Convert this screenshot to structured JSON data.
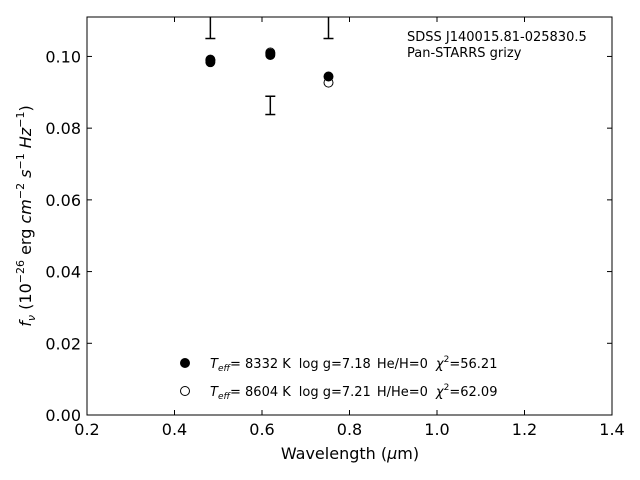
{
  "chart_data": {
    "type": "scatter",
    "title": "",
    "annotation": {
      "object": "SDSS J140015.81-025830.5",
      "survey": "Pan-STARRS grizy"
    },
    "xlabel": "Wavelength ($\\mu$m)",
    "xlabel_parts": {
      "pre": "Wavelength (",
      "mu": "μ",
      "post": "m)"
    },
    "ylabel": "$f_\\nu$ ($10^{-26}$ erg $cm^{-2}$ $s^{-1}$ $Hz^{-1}$)",
    "ylabel_parts": {
      "f": "f",
      "nu": "ν",
      "open": " (10",
      "e1": "−26",
      "erg": " erg ",
      "cm": "cm",
      "e2": "−2",
      "s": " s",
      "e3": "−1",
      "hz": " Hz",
      "e4": "−1",
      "close": ")"
    },
    "xlim": [
      0.2,
      1.4
    ],
    "ylim": [
      0.0,
      0.111
    ],
    "xticks": [
      "0.2",
      "0.4",
      "0.6",
      "0.8",
      "1.0",
      "1.2",
      "1.4"
    ],
    "xtick_values": [
      0.2,
      0.4,
      0.6,
      0.8,
      1.0,
      1.2,
      1.4
    ],
    "yticks": [
      "0.00",
      "0.02",
      "0.04",
      "0.06",
      "0.08",
      "0.10"
    ],
    "ytick_values": [
      0.0,
      0.02,
      0.04,
      0.06,
      0.08,
      0.1
    ],
    "grid": false,
    "legend_position": "lower-center",
    "observed": {
      "x": [
        0.482,
        0.619,
        0.752
      ],
      "y_low": [
        0.105,
        0.0838,
        0.105
      ],
      "y_high": [
        0.111,
        0.0889,
        0.111
      ]
    },
    "series": [
      {
        "name": "Teff= 8332 K log g=7.18 He/H=0 chi2=56.21",
        "marker": "filled-circle",
        "x": [
          0.482,
          0.482,
          0.619,
          0.619,
          0.752
        ],
        "y": [
          0.0984,
          0.0989,
          0.1004,
          0.1008,
          0.0944
        ],
        "legend": {
          "teff_pre": "T",
          "teff_sub": "eff",
          "teff_val": "=  8332 K",
          "logg": "log g=7.18",
          "comp": "He/H=0",
          "chi_sup": "2",
          "chi_val": "=56.21"
        }
      },
      {
        "name": "Teff= 8604 K log g=7.21 H/He=0 chi2=62.09",
        "marker": "open-circle",
        "x": [
          0.482,
          0.619,
          0.752
        ],
        "y": [
          0.0991,
          0.1011,
          0.0927
        ],
        "legend": {
          "teff_pre": "T",
          "teff_sub": "eff",
          "teff_val": "=  8604 K",
          "logg": "log g=7.21",
          "comp": "H/He=0",
          "chi_sup": "2",
          "chi_val": "=62.09"
        }
      }
    ]
  }
}
